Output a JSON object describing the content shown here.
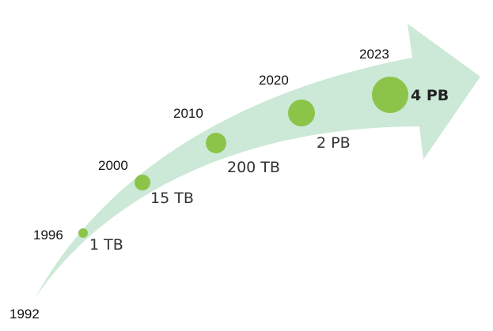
{
  "colors": {
    "arrow": "#cbe9d6",
    "dot": "#8cc44a"
  },
  "timeline": {
    "start_year": "1992",
    "milestones": [
      {
        "year": "1996",
        "amount": "1 TB",
        "emphasis": false
      },
      {
        "year": "2000",
        "amount": "15 TB",
        "emphasis": false
      },
      {
        "year": "2010",
        "amount": "200 TB",
        "emphasis": false
      },
      {
        "year": "2020",
        "amount": "2 PB",
        "emphasis": false
      },
      {
        "year": "2023",
        "amount": "4 PB",
        "emphasis": true
      }
    ]
  }
}
